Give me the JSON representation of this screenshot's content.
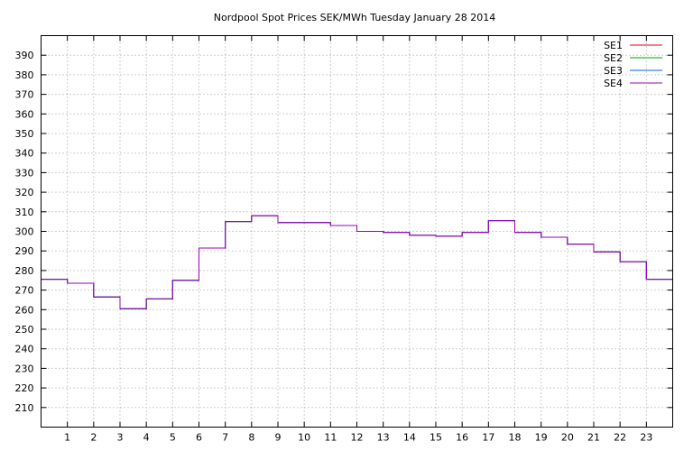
{
  "chart_data": {
    "type": "line",
    "step": true,
    "title": "Nordpool Spot Prices SEK/MWh Tuesday January 28 2014",
    "xlabel": "",
    "ylabel": "",
    "xlim": [
      0,
      24
    ],
    "ylim": [
      200,
      400
    ],
    "x_ticks": [
      1,
      2,
      3,
      4,
      5,
      6,
      7,
      8,
      9,
      10,
      11,
      12,
      13,
      14,
      15,
      16,
      17,
      18,
      19,
      20,
      21,
      22,
      23
    ],
    "y_ticks": [
      210,
      220,
      230,
      240,
      250,
      260,
      270,
      280,
      290,
      300,
      310,
      320,
      330,
      340,
      350,
      360,
      370,
      380,
      390
    ],
    "grid": true,
    "legend_position": "top-right",
    "hours": [
      0,
      1,
      2,
      3,
      4,
      5,
      6,
      7,
      8,
      9,
      10,
      11,
      12,
      13,
      14,
      15,
      16,
      17,
      18,
      19,
      20,
      21,
      22,
      23
    ],
    "series": [
      {
        "name": "SE1",
        "color": "#e0001c",
        "values": [
          275.5,
          273.5,
          266.5,
          260.5,
          265.5,
          275.0,
          291.5,
          305.0,
          308.0,
          304.5,
          304.5,
          303.0,
          300.0,
          299.5,
          298.0,
          297.5,
          299.5,
          305.5,
          299.5,
          297.0,
          293.5,
          289.5,
          284.5,
          275.5
        ]
      },
      {
        "name": "SE2",
        "color": "#00a000",
        "values": [
          275.5,
          273.5,
          266.5,
          260.5,
          265.5,
          275.0,
          291.5,
          305.0,
          308.0,
          304.5,
          304.5,
          303.0,
          300.0,
          299.5,
          298.0,
          297.5,
          299.5,
          305.5,
          299.5,
          297.0,
          293.5,
          289.5,
          284.5,
          275.5
        ]
      },
      {
        "name": "SE3",
        "color": "#0066e0",
        "values": [
          275.5,
          273.5,
          266.5,
          260.5,
          265.5,
          275.0,
          291.5,
          305.0,
          308.0,
          304.5,
          304.5,
          303.0,
          300.0,
          299.5,
          298.0,
          297.5,
          299.5,
          305.5,
          299.5,
          297.0,
          293.5,
          289.5,
          284.5,
          275.5
        ]
      },
      {
        "name": "SE4",
        "color": "#9a00b8",
        "values": [
          275.5,
          273.5,
          266.5,
          260.5,
          265.5,
          275.0,
          291.5,
          305.0,
          308.0,
          304.5,
          304.5,
          303.0,
          300.0,
          299.5,
          298.0,
          297.5,
          299.5,
          305.5,
          299.5,
          297.0,
          293.5,
          289.5,
          284.5,
          275.5
        ]
      }
    ]
  }
}
